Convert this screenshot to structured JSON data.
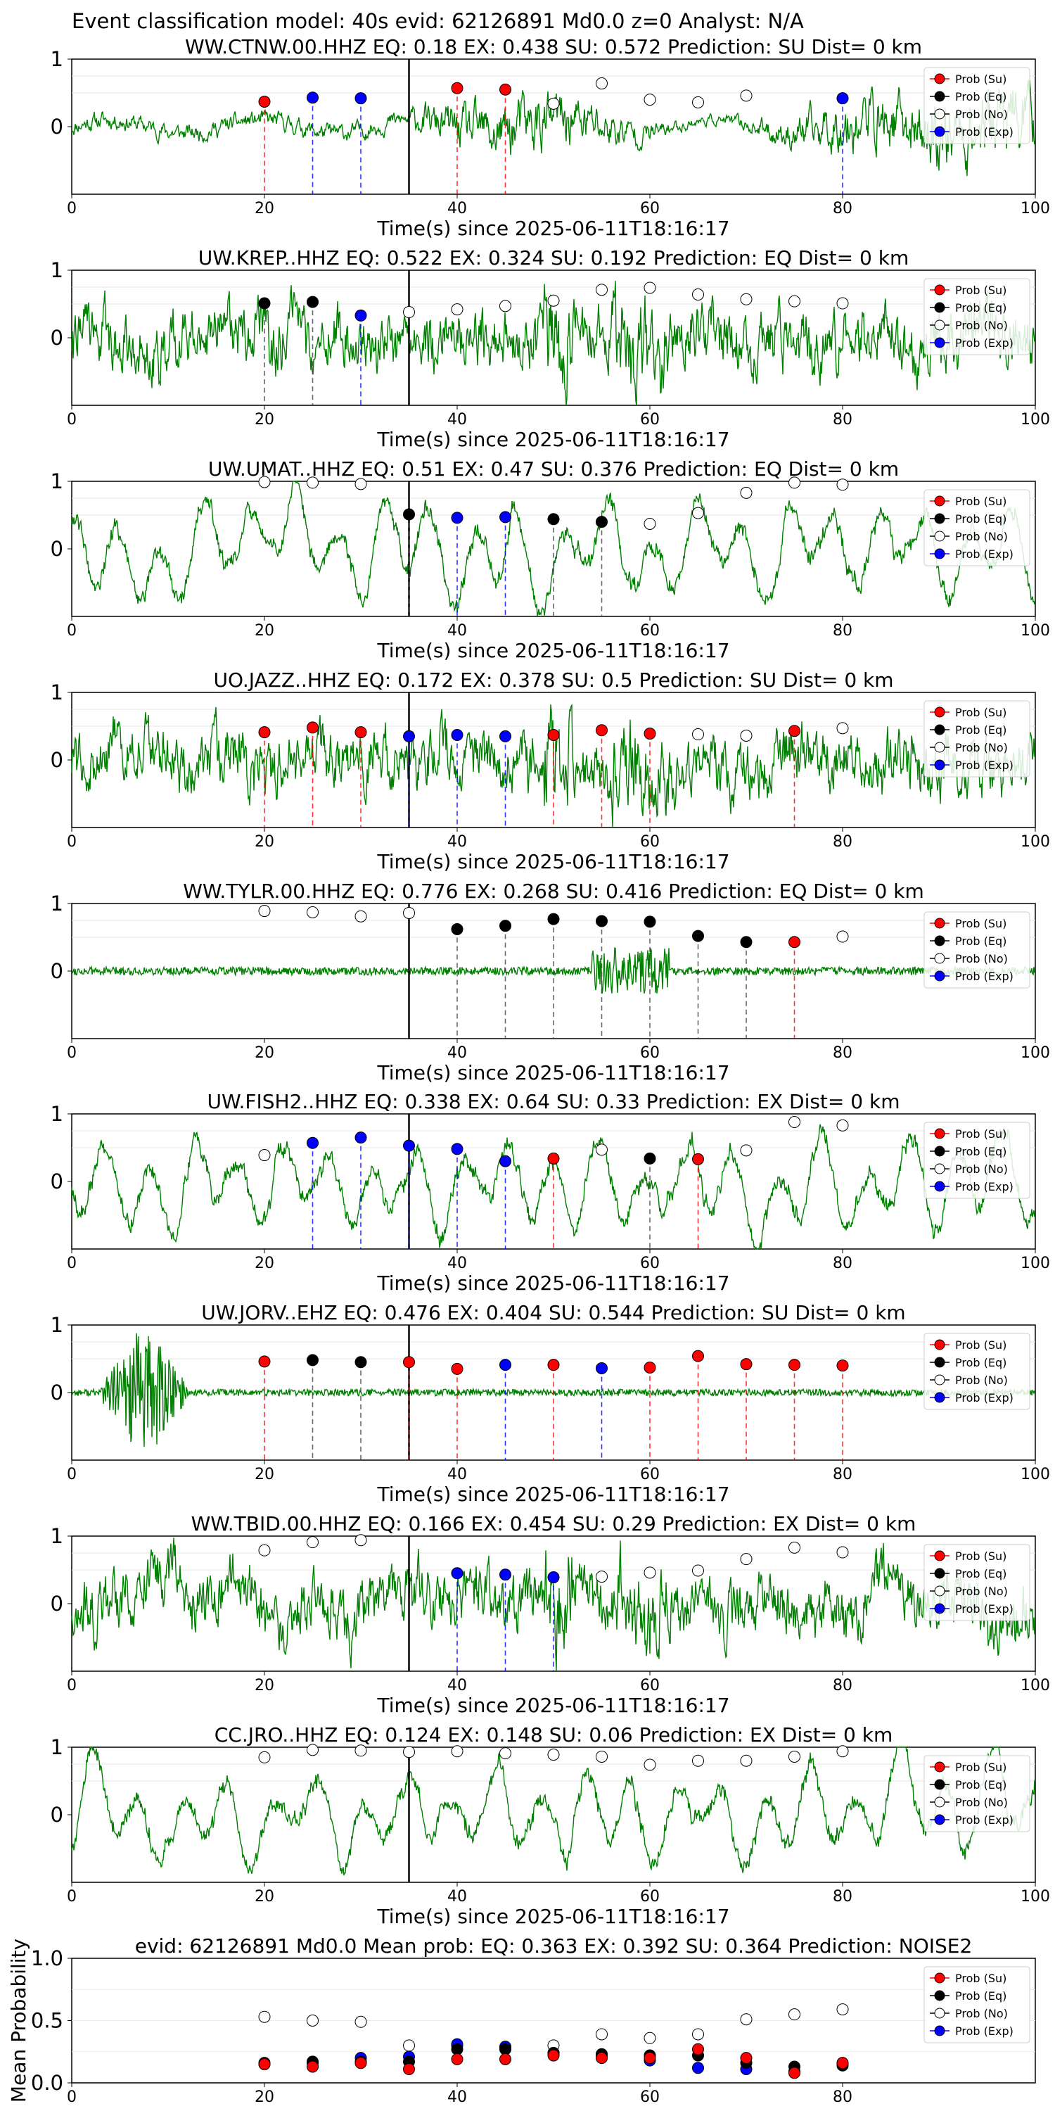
{
  "suptitle": "Event classification model: 40s evid: 62126891 Md0.0 z=0 Analyst: N/A",
  "legend_labels": [
    "Prob (Su)",
    "Prob (Eq)",
    "Prob (No)",
    "Prob (Exp)"
  ],
  "colors": {
    "su": "#ff0000",
    "eq": "#000000",
    "no": "#ffffff",
    "exp": "#0000ff",
    "trace": "#008000",
    "mean_band": "#c8c8c8"
  },
  "chart_data": [
    {
      "type": "line",
      "title": "WW.CTNW.00.HHZ   EQ: 0.18  EX: 0.438  SU: 0.572   Prediction: SU    Dist= 0 km",
      "xlabel": "Time(s) since 2025-06-11T18:16:17",
      "ylabel": "",
      "xlim": [
        0,
        100
      ],
      "ylim": [
        -1,
        1
      ],
      "xticks": [
        "0",
        "20",
        "40",
        "60",
        "80",
        "100"
      ],
      "yticks": [
        "0",
        "1"
      ],
      "event_line_x": 35,
      "trace": {
        "style": "moderate",
        "seed": 11
      },
      "points": [
        {
          "x": 20,
          "y": 0.37,
          "cls": "su"
        },
        {
          "x": 25,
          "y": 0.43,
          "cls": "exp"
        },
        {
          "x": 30,
          "y": 0.42,
          "cls": "exp"
        },
        {
          "x": 40,
          "y": 0.57,
          "cls": "su"
        },
        {
          "x": 45,
          "y": 0.55,
          "cls": "su"
        },
        {
          "x": 50,
          "y": 0.34,
          "cls": "no"
        },
        {
          "x": 55,
          "y": 0.64,
          "cls": "no"
        },
        {
          "x": 60,
          "y": 0.4,
          "cls": "no"
        },
        {
          "x": 65,
          "y": 0.36,
          "cls": "no"
        },
        {
          "x": 70,
          "y": 0.46,
          "cls": "no"
        },
        {
          "x": 80,
          "y": 0.42,
          "cls": "exp"
        }
      ]
    },
    {
      "type": "line",
      "title": "UW.KREP..HHZ  EQ: 0.522  EX: 0.324  SU: 0.192   Prediction: EQ    Dist= 0 km",
      "xlabel": "Time(s) since 2025-06-11T18:16:17",
      "ylabel": "",
      "xlim": [
        0,
        100
      ],
      "ylim": [
        -1,
        1
      ],
      "xticks": [
        "0",
        "20",
        "40",
        "60",
        "80",
        "100"
      ],
      "yticks": [
        "0",
        "1"
      ],
      "event_line_x": 35,
      "trace": {
        "style": "heavy",
        "seed": 22
      },
      "points": [
        {
          "x": 20,
          "y": 0.51,
          "cls": "eq"
        },
        {
          "x": 25,
          "y": 0.53,
          "cls": "eq"
        },
        {
          "x": 30,
          "y": 0.33,
          "cls": "exp"
        },
        {
          "x": 35,
          "y": 0.38,
          "cls": "no"
        },
        {
          "x": 40,
          "y": 0.42,
          "cls": "no"
        },
        {
          "x": 45,
          "y": 0.47,
          "cls": "no"
        },
        {
          "x": 50,
          "y": 0.55,
          "cls": "no"
        },
        {
          "x": 55,
          "y": 0.71,
          "cls": "no"
        },
        {
          "x": 60,
          "y": 0.74,
          "cls": "no"
        },
        {
          "x": 65,
          "y": 0.64,
          "cls": "no"
        },
        {
          "x": 70,
          "y": 0.57,
          "cls": "no"
        },
        {
          "x": 75,
          "y": 0.54,
          "cls": "no"
        },
        {
          "x": 80,
          "y": 0.51,
          "cls": "no"
        }
      ]
    },
    {
      "type": "line",
      "title": "UW.UMAT..HHZ   EQ: 0.51  EX: 0.47  SU: 0.376   Prediction: EQ    Dist= 0 km",
      "xlabel": "Time(s) since 2025-06-11T18:16:17",
      "ylabel": "",
      "xlim": [
        0,
        100
      ],
      "ylim": [
        -1,
        1
      ],
      "xticks": [
        "0",
        "20",
        "40",
        "60",
        "80",
        "100"
      ],
      "yticks": [
        "0",
        "1"
      ],
      "event_line_x": 35,
      "trace": {
        "style": "wave",
        "seed": 33
      },
      "points": [
        {
          "x": 20,
          "y": 0.99,
          "cls": "no"
        },
        {
          "x": 25,
          "y": 0.98,
          "cls": "no"
        },
        {
          "x": 30,
          "y": 0.96,
          "cls": "no"
        },
        {
          "x": 35,
          "y": 0.51,
          "cls": "eq"
        },
        {
          "x": 40,
          "y": 0.46,
          "cls": "exp"
        },
        {
          "x": 45,
          "y": 0.47,
          "cls": "exp"
        },
        {
          "x": 50,
          "y": 0.44,
          "cls": "eq"
        },
        {
          "x": 55,
          "y": 0.4,
          "cls": "eq"
        },
        {
          "x": 60,
          "y": 0.37,
          "cls": "no"
        },
        {
          "x": 65,
          "y": 0.53,
          "cls": "no"
        },
        {
          "x": 70,
          "y": 0.83,
          "cls": "no"
        },
        {
          "x": 75,
          "y": 0.98,
          "cls": "no"
        },
        {
          "x": 80,
          "y": 0.95,
          "cls": "no"
        }
      ]
    },
    {
      "type": "line",
      "title": "UO.JAZZ..HHZ   EQ: 0.172  EX: 0.378  SU: 0.5   Prediction: SU    Dist= 0 km",
      "xlabel": "Time(s) since 2025-06-11T18:16:17",
      "ylabel": "",
      "xlim": [
        0,
        100
      ],
      "ylim": [
        -1,
        1
      ],
      "xticks": [
        "0",
        "20",
        "40",
        "60",
        "80",
        "100"
      ],
      "yticks": [
        "0",
        "1"
      ],
      "event_line_x": 35,
      "trace": {
        "style": "heavy",
        "seed": 44
      },
      "points": [
        {
          "x": 20,
          "y": 0.41,
          "cls": "su"
        },
        {
          "x": 25,
          "y": 0.48,
          "cls": "su"
        },
        {
          "x": 30,
          "y": 0.41,
          "cls": "su"
        },
        {
          "x": 35,
          "y": 0.35,
          "cls": "exp"
        },
        {
          "x": 40,
          "y": 0.37,
          "cls": "exp"
        },
        {
          "x": 45,
          "y": 0.35,
          "cls": "exp"
        },
        {
          "x": 50,
          "y": 0.37,
          "cls": "su"
        },
        {
          "x": 55,
          "y": 0.44,
          "cls": "su"
        },
        {
          "x": 60,
          "y": 0.39,
          "cls": "su"
        },
        {
          "x": 65,
          "y": 0.38,
          "cls": "no"
        },
        {
          "x": 70,
          "y": 0.36,
          "cls": "no"
        },
        {
          "x": 75,
          "y": 0.43,
          "cls": "su"
        },
        {
          "x": 80,
          "y": 0.47,
          "cls": "no"
        }
      ]
    },
    {
      "type": "line",
      "title": "WW.TYLR.00.HHZ   EQ: 0.776  EX: 0.268  SU: 0.416   Prediction: EQ    Dist= 0 km",
      "xlabel": "Time(s) since 2025-06-11T18:16:17",
      "ylabel": "",
      "xlim": [
        0,
        100
      ],
      "ylim": [
        -1,
        1
      ],
      "xticks": [
        "0",
        "20",
        "40",
        "60",
        "80",
        "100"
      ],
      "yticks": [
        "0",
        "1"
      ],
      "event_line_x": 35,
      "trace": {
        "style": "quiet",
        "seed": 55
      },
      "points": [
        {
          "x": 20,
          "y": 0.89,
          "cls": "no"
        },
        {
          "x": 25,
          "y": 0.87,
          "cls": "no"
        },
        {
          "x": 30,
          "y": 0.81,
          "cls": "no"
        },
        {
          "x": 35,
          "y": 0.86,
          "cls": "no"
        },
        {
          "x": 40,
          "y": 0.62,
          "cls": "eq"
        },
        {
          "x": 45,
          "y": 0.67,
          "cls": "eq"
        },
        {
          "x": 50,
          "y": 0.77,
          "cls": "eq"
        },
        {
          "x": 55,
          "y": 0.74,
          "cls": "eq"
        },
        {
          "x": 60,
          "y": 0.73,
          "cls": "eq"
        },
        {
          "x": 65,
          "y": 0.52,
          "cls": "eq"
        },
        {
          "x": 70,
          "y": 0.43,
          "cls": "eq"
        },
        {
          "x": 75,
          "y": 0.43,
          "cls": "su"
        },
        {
          "x": 80,
          "y": 0.51,
          "cls": "no"
        }
      ]
    },
    {
      "type": "line",
      "title": "UW.FISH2..HHZ   EQ: 0.338  EX: 0.64  SU: 0.33   Prediction: EX    Dist= 0 km",
      "xlabel": "Time(s) since 2025-06-11T18:16:17",
      "ylabel": "",
      "xlim": [
        0,
        100
      ],
      "ylim": [
        -1,
        1
      ],
      "xticks": [
        "0",
        "20",
        "40",
        "60",
        "80",
        "100"
      ],
      "yticks": [
        "0",
        "1"
      ],
      "event_line_x": 35,
      "trace": {
        "style": "wave",
        "seed": 66
      },
      "points": [
        {
          "x": 20,
          "y": 0.39,
          "cls": "no"
        },
        {
          "x": 25,
          "y": 0.57,
          "cls": "exp"
        },
        {
          "x": 30,
          "y": 0.65,
          "cls": "exp"
        },
        {
          "x": 35,
          "y": 0.53,
          "cls": "exp"
        },
        {
          "x": 40,
          "y": 0.48,
          "cls": "exp"
        },
        {
          "x": 45,
          "y": 0.3,
          "cls": "exp"
        },
        {
          "x": 50,
          "y": 0.34,
          "cls": "su"
        },
        {
          "x": 55,
          "y": 0.47,
          "cls": "no"
        },
        {
          "x": 60,
          "y": 0.34,
          "cls": "eq"
        },
        {
          "x": 65,
          "y": 0.33,
          "cls": "su"
        },
        {
          "x": 70,
          "y": 0.46,
          "cls": "no"
        },
        {
          "x": 75,
          "y": 0.88,
          "cls": "no"
        },
        {
          "x": 80,
          "y": 0.83,
          "cls": "no"
        }
      ]
    },
    {
      "type": "line",
      "title": "UW.JORV..EHZ   EQ: 0.476  EX: 0.404  SU: 0.544   Prediction: SU    Dist= 0 km",
      "xlabel": "Time(s) since 2025-06-11T18:16:17",
      "ylabel": "",
      "xlim": [
        0,
        100
      ],
      "ylim": [
        -1,
        1
      ],
      "xticks": [
        "0",
        "20",
        "40",
        "60",
        "80",
        "100"
      ],
      "yticks": [
        "0",
        "1"
      ],
      "event_line_x": 35,
      "trace": {
        "style": "burst",
        "seed": 77
      },
      "points": [
        {
          "x": 20,
          "y": 0.46,
          "cls": "su"
        },
        {
          "x": 25,
          "y": 0.48,
          "cls": "eq"
        },
        {
          "x": 30,
          "y": 0.45,
          "cls": "eq"
        },
        {
          "x": 35,
          "y": 0.45,
          "cls": "su"
        },
        {
          "x": 40,
          "y": 0.35,
          "cls": "su"
        },
        {
          "x": 45,
          "y": 0.41,
          "cls": "exp"
        },
        {
          "x": 50,
          "y": 0.41,
          "cls": "su"
        },
        {
          "x": 55,
          "y": 0.36,
          "cls": "exp"
        },
        {
          "x": 60,
          "y": 0.37,
          "cls": "su"
        },
        {
          "x": 65,
          "y": 0.54,
          "cls": "su"
        },
        {
          "x": 70,
          "y": 0.42,
          "cls": "su"
        },
        {
          "x": 75,
          "y": 0.41,
          "cls": "su"
        },
        {
          "x": 80,
          "y": 0.4,
          "cls": "su"
        }
      ]
    },
    {
      "type": "line",
      "title": "WW.TBID.00.HHZ   EQ: 0.166  EX: 0.454  SU: 0.29   Prediction: EX    Dist= 0 km",
      "xlabel": "Time(s) since 2025-06-11T18:16:17",
      "ylabel": "",
      "xlim": [
        0,
        100
      ],
      "ylim": [
        -1,
        1
      ],
      "xticks": [
        "0",
        "20",
        "40",
        "60",
        "80",
        "100"
      ],
      "yticks": [
        "0",
        "1"
      ],
      "event_line_x": 35,
      "trace": {
        "style": "heavy",
        "seed": 88
      },
      "points": [
        {
          "x": 20,
          "y": 0.79,
          "cls": "no"
        },
        {
          "x": 25,
          "y": 0.91,
          "cls": "no"
        },
        {
          "x": 30,
          "y": 0.94,
          "cls": "no"
        },
        {
          "x": 40,
          "y": 0.45,
          "cls": "exp"
        },
        {
          "x": 45,
          "y": 0.43,
          "cls": "exp"
        },
        {
          "x": 50,
          "y": 0.39,
          "cls": "exp"
        },
        {
          "x": 55,
          "y": 0.4,
          "cls": "no"
        },
        {
          "x": 60,
          "y": 0.46,
          "cls": "no"
        },
        {
          "x": 65,
          "y": 0.49,
          "cls": "no"
        },
        {
          "x": 70,
          "y": 0.66,
          "cls": "no"
        },
        {
          "x": 75,
          "y": 0.83,
          "cls": "no"
        },
        {
          "x": 80,
          "y": 0.76,
          "cls": "no"
        }
      ]
    },
    {
      "type": "line",
      "title": "CC.JRO..HHZ   EQ: 0.124  EX: 0.148  SU: 0.06   Prediction: EX    Dist= 0 km",
      "xlabel": "Time(s) since 2025-06-11T18:16:17",
      "ylabel": "",
      "xlim": [
        0,
        100
      ],
      "ylim": [
        -1,
        1
      ],
      "xticks": [
        "0",
        "20",
        "40",
        "60",
        "80",
        "100"
      ],
      "yticks": [
        "0",
        "1"
      ],
      "event_line_x": 35,
      "trace": {
        "style": "wave",
        "seed": 99
      },
      "points": [
        {
          "x": 20,
          "y": 0.85,
          "cls": "no"
        },
        {
          "x": 25,
          "y": 0.96,
          "cls": "no"
        },
        {
          "x": 30,
          "y": 0.95,
          "cls": "no"
        },
        {
          "x": 35,
          "y": 0.93,
          "cls": "no"
        },
        {
          "x": 40,
          "y": 0.94,
          "cls": "no"
        },
        {
          "x": 45,
          "y": 0.91,
          "cls": "no"
        },
        {
          "x": 50,
          "y": 0.89,
          "cls": "no"
        },
        {
          "x": 55,
          "y": 0.86,
          "cls": "no"
        },
        {
          "x": 60,
          "y": 0.74,
          "cls": "no"
        },
        {
          "x": 65,
          "y": 0.8,
          "cls": "no"
        },
        {
          "x": 70,
          "y": 0.8,
          "cls": "no"
        },
        {
          "x": 75,
          "y": 0.86,
          "cls": "no"
        },
        {
          "x": 80,
          "y": 0.94,
          "cls": "no"
        }
      ]
    },
    {
      "type": "scatter",
      "title": "evid: 62126891  Md0.0   Mean prob:    EQ: 0.363  EX: 0.392  SU: 0.364   Prediction: NOISE2",
      "xlabel": "",
      "ylabel": "Mean Probability",
      "xlim": [
        0,
        100
      ],
      "ylim": [
        0,
        1
      ],
      "xticks": [
        "0",
        "20",
        "40",
        "60",
        "80"
      ],
      "yticks": [
        "0.0",
        "0.5",
        "1.0"
      ],
      "x": [
        20,
        25,
        30,
        35,
        40,
        45,
        50,
        55,
        60,
        65,
        70,
        75,
        80
      ],
      "series": [
        {
          "key": "no",
          "values": [
            0.53,
            0.5,
            0.49,
            0.3,
            0.3,
            0.28,
            0.3,
            0.39,
            0.36,
            0.39,
            0.51,
            0.55,
            0.59
          ]
        },
        {
          "key": "exp",
          "values": [
            0.15,
            0.16,
            0.2,
            0.21,
            0.31,
            0.29,
            0.24,
            0.21,
            0.18,
            0.12,
            0.11,
            0.09,
            null
          ]
        },
        {
          "key": "eq",
          "values": [
            0.16,
            0.17,
            0.17,
            0.17,
            0.27,
            0.27,
            0.24,
            0.23,
            0.22,
            0.22,
            0.16,
            0.13,
            0.14
          ]
        },
        {
          "key": "su",
          "values": [
            0.15,
            0.13,
            0.16,
            0.11,
            0.19,
            0.19,
            0.22,
            0.2,
            0.2,
            0.27,
            0.2,
            0.08,
            0.16
          ]
        }
      ]
    }
  ]
}
